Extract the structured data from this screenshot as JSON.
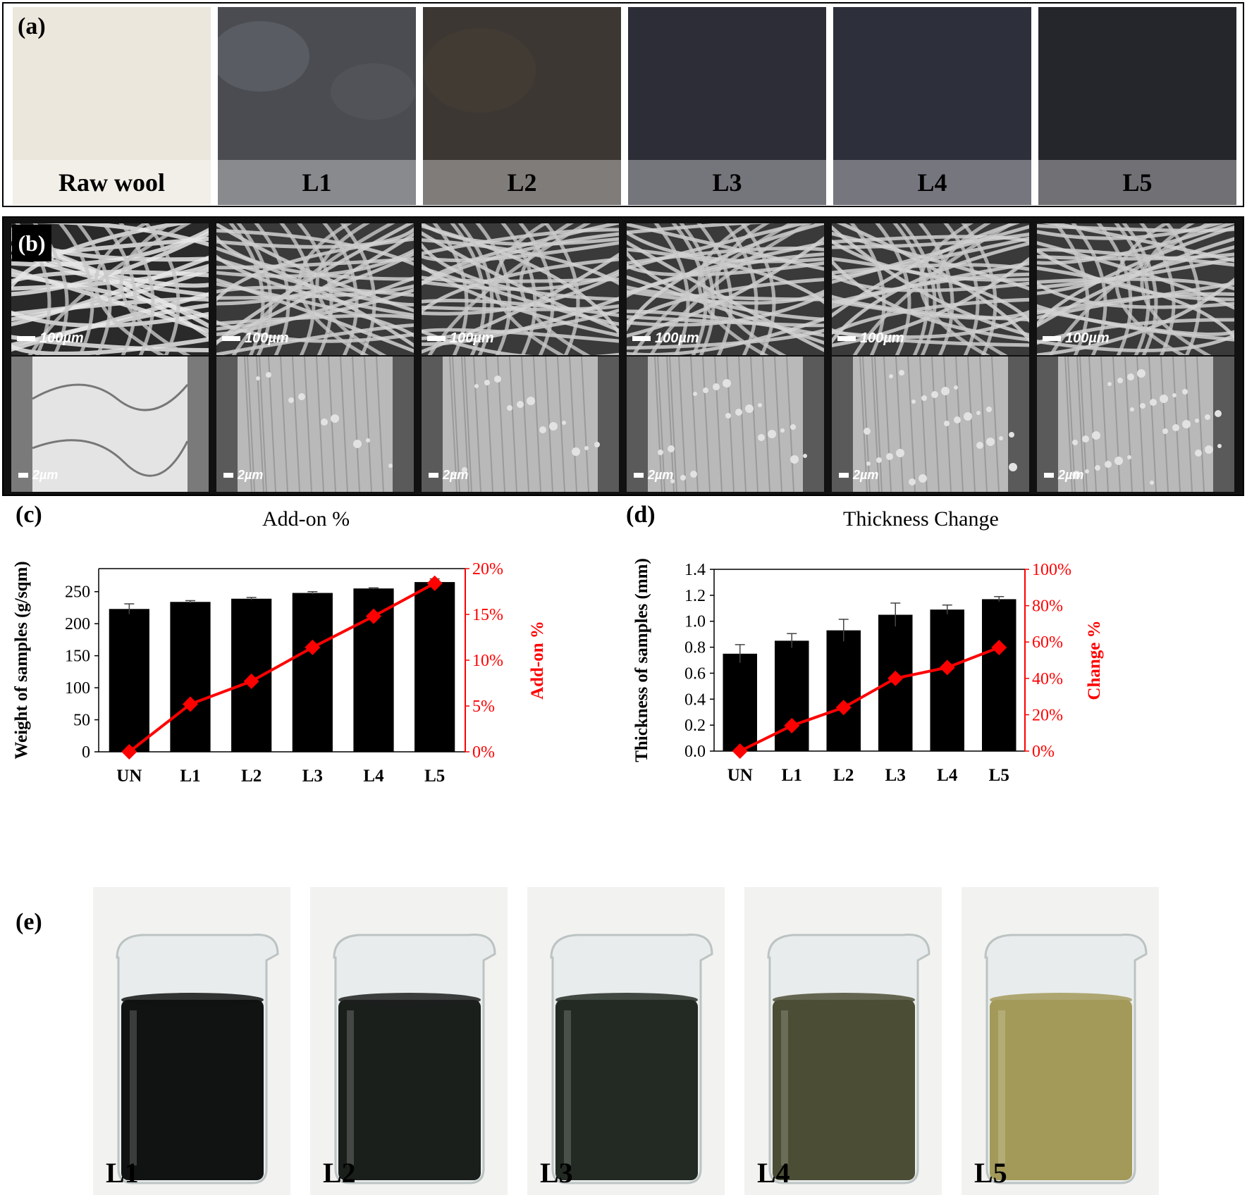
{
  "panel_labels": {
    "a": "(a)",
    "b": "(b)",
    "c": "(c)",
    "d": "(d)",
    "e": "(e)"
  },
  "panel_a": {
    "samples": [
      {
        "label": "Raw wool",
        "color": "#ece7dc"
      },
      {
        "label": "L1",
        "color": "#4a4c52"
      },
      {
        "label": "L2",
        "color": "#3d3733"
      },
      {
        "label": "L3",
        "color": "#2c2d37"
      },
      {
        "label": "L4",
        "color": "#2d2f3a"
      },
      {
        "label": "L5",
        "color": "#25262c"
      }
    ]
  },
  "panel_b": {
    "top_scale": "100µm",
    "bottom_scale": "2µm",
    "columns": [
      "Raw wool",
      "L1",
      "L2",
      "L3",
      "L4",
      "L5"
    ]
  },
  "chart_data": [
    {
      "type": "bar",
      "title": "Add-on %",
      "categories": [
        "UN",
        "L1",
        "L2",
        "L3",
        "L4",
        "L5"
      ],
      "ylabel": "Weight of samples (g/sqm)",
      "y2label": "Add-on %",
      "ylim": [
        0,
        286
      ],
      "yticks": [
        "0",
        "50",
        "100",
        "150",
        "200",
        "250"
      ],
      "y2lim": [
        0,
        20
      ],
      "y2ticks": [
        "0%",
        "5%",
        "10%",
        "15%",
        "20%"
      ],
      "series": [
        {
          "type": "bar",
          "axis": "left",
          "values": [
            223,
            234,
            239,
            248,
            255,
            265
          ],
          "errors": [
            8,
            2,
            2,
            2,
            1,
            5
          ],
          "color": "#000000"
        },
        {
          "type": "line",
          "axis": "right",
          "values": [
            0,
            5.2,
            7.7,
            11.4,
            14.8,
            18.4
          ],
          "color": "#ff0000",
          "marker": "diamond"
        }
      ]
    },
    {
      "type": "bar",
      "title": "Thickness Change",
      "categories": [
        "UN",
        "L1",
        "L2",
        "L3",
        "L4",
        "L5"
      ],
      "ylabel": "Thickness of samples (mm)",
      "y2label": "Change %",
      "ylim": [
        0,
        1.4
      ],
      "yticks": [
        "0.0",
        "0.2",
        "0.4",
        "0.6",
        "0.8",
        "1.0",
        "1.2",
        "1.4"
      ],
      "y2lim": [
        0,
        100
      ],
      "y2ticks": [
        "0%",
        "20%",
        "40%",
        "60%",
        "80%",
        "100%"
      ],
      "series": [
        {
          "type": "bar",
          "axis": "left",
          "values": [
            0.75,
            0.85,
            0.93,
            1.05,
            1.09,
            1.17
          ],
          "errors": [
            0.07,
            0.055,
            0.085,
            0.09,
            0.035,
            0.02
          ],
          "color": "#000000"
        },
        {
          "type": "line",
          "axis": "right",
          "values": [
            0,
            14,
            24,
            40,
            46,
            57
          ],
          "color": "#ff0000",
          "marker": "diamond"
        }
      ]
    }
  ],
  "panel_e": {
    "beakers": [
      {
        "label": "L1",
        "liquid": "#111312"
      },
      {
        "label": "L2",
        "liquid": "#1b1f1c"
      },
      {
        "label": "L3",
        "liquid": "#232a23"
      },
      {
        "label": "L4",
        "liquid": "#4c4d35"
      },
      {
        "label": "L5",
        "liquid": "#a39a5a"
      }
    ]
  }
}
